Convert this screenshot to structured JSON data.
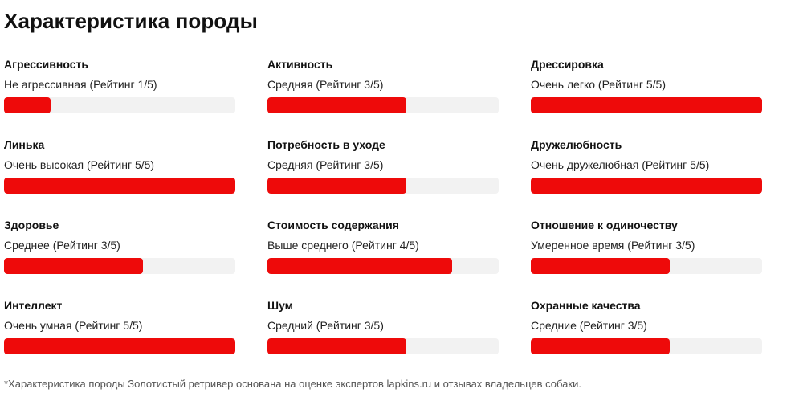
{
  "title": "Характеристика породы",
  "colors": {
    "accent": "#ee0a0a",
    "track": "#f2f2f2"
  },
  "traits": [
    {
      "name": "Агрессивность",
      "value": "Не агрессивная (Рейтинг 1/5)",
      "rating": 1,
      "max": 5
    },
    {
      "name": "Активность",
      "value": "Средняя (Рейтинг 3/5)",
      "rating": 3,
      "max": 5
    },
    {
      "name": "Дрессировка",
      "value": "Очень легко (Рейтинг 5/5)",
      "rating": 5,
      "max": 5
    },
    {
      "name": "Линька",
      "value": "Очень высокая (Рейтинг 5/5)",
      "rating": 5,
      "max": 5
    },
    {
      "name": "Потребность в уходе",
      "value": "Средняя (Рейтинг 3/5)",
      "rating": 3,
      "max": 5
    },
    {
      "name": "Дружелюбность",
      "value": "Очень дружелюбная (Рейтинг 5/5)",
      "rating": 5,
      "max": 5
    },
    {
      "name": "Здоровье",
      "value": "Среднее (Рейтинг 3/5)",
      "rating": 3,
      "max": 5
    },
    {
      "name": "Стоимость содержания",
      "value": "Выше среднего (Рейтинг 4/5)",
      "rating": 4,
      "max": 5
    },
    {
      "name": "Отношение к одиночеству",
      "value": "Умеренное время (Рейтинг 3/5)",
      "rating": 3,
      "max": 5
    },
    {
      "name": "Интеллект",
      "value": "Очень умная (Рейтинг 5/5)",
      "rating": 5,
      "max": 5
    },
    {
      "name": "Шум",
      "value": "Средний (Рейтинг 3/5)",
      "rating": 3,
      "max": 5
    },
    {
      "name": "Охранные качества",
      "value": "Средние (Рейтинг 3/5)",
      "rating": 3,
      "max": 5
    }
  ],
  "footnote": "*Характеристика породы Золотистый ретривер основана на оценке экспертов lapkins.ru и отзывах владельцев собаки."
}
